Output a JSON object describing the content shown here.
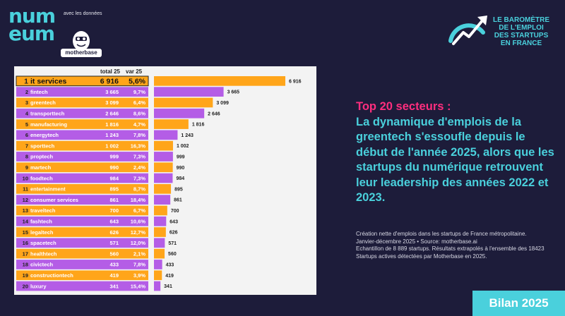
{
  "brand": {
    "numeum_lines": [
      "num",
      "eum"
    ],
    "partner_prefix": "avec les données",
    "partner_name": "motherbase"
  },
  "badge": {
    "lines": [
      "LE BAROMÈTRE",
      "DE L'EMPLOI",
      "DES STARTUPS",
      "EN FRANCE"
    ]
  },
  "headline": {
    "accent": "Top 20 secteurs :",
    "body": "La dynamique d'emplois de la greentech s'essoufle depuis le début de l'année 2025, alors que les startups du numérique retrouvent leur leadership des années 2022 et 2023."
  },
  "notes": {
    "description": "Création nette d'emplois dans les startups de France métropolitaine.",
    "period": "Janvier-décembre 2025 • Source: motherbase.ai",
    "sample": "Echantillon de 8 889 startups. Résultats extrapolés à l'ensemble des 18423 Startups actives détectées par Motherbase en 2025."
  },
  "footer": {
    "label": "Bilan 2025"
  },
  "colors": {
    "orange": "#ffa51a",
    "purple": "#b45de6",
    "cyan": "#4ad0dc",
    "pink": "#ff2e7e",
    "bg": "#1d1c3a"
  },
  "chart_data": {
    "type": "bar",
    "orientation": "horizontal",
    "columns": [
      "",
      "total 25",
      "var 25"
    ],
    "ranks": [
      1,
      2,
      3,
      4,
      5,
      6,
      7,
      8,
      9,
      10,
      11,
      12,
      13,
      14,
      15,
      16,
      17,
      18,
      19,
      20
    ],
    "categories": [
      "it services",
      "fintech",
      "greentech",
      "transporttech",
      "manufacturing",
      "energytech",
      "sporttech",
      "proptech",
      "martech",
      "foodtech",
      "entertainment",
      "consumer services",
      "traveltech",
      "fashtech",
      "legaltech",
      "spacetech",
      "healthtech",
      "civictech",
      "constructiontech",
      "luxury"
    ],
    "values": [
      6916,
      3665,
      3099,
      2646,
      1816,
      1243,
      1002,
      999,
      990,
      984,
      895,
      861,
      700,
      643,
      626,
      571,
      560,
      433,
      419,
      341
    ],
    "value_labels": [
      "6 916",
      "3 665",
      "3 099",
      "2 646",
      "1 816",
      "1 243",
      "1 002",
      "999",
      "990",
      "984",
      "895",
      "861",
      "700",
      "643",
      "626",
      "571",
      "560",
      "433",
      "419",
      "341"
    ],
    "var_labels": [
      "5,6%",
      "9,7%",
      "6,4%",
      "8,6%",
      "4,7%",
      "7,8%",
      "16,3%",
      "7,3%",
      "2,4%",
      "7,3%",
      "8,7%",
      "18,4%",
      "6,7%",
      "10,6%",
      "12,7%",
      "12,0%",
      "2,1%",
      "7,8%",
      "3,9%",
      "15,4%"
    ],
    "xlim": [
      0,
      6916
    ]
  }
}
